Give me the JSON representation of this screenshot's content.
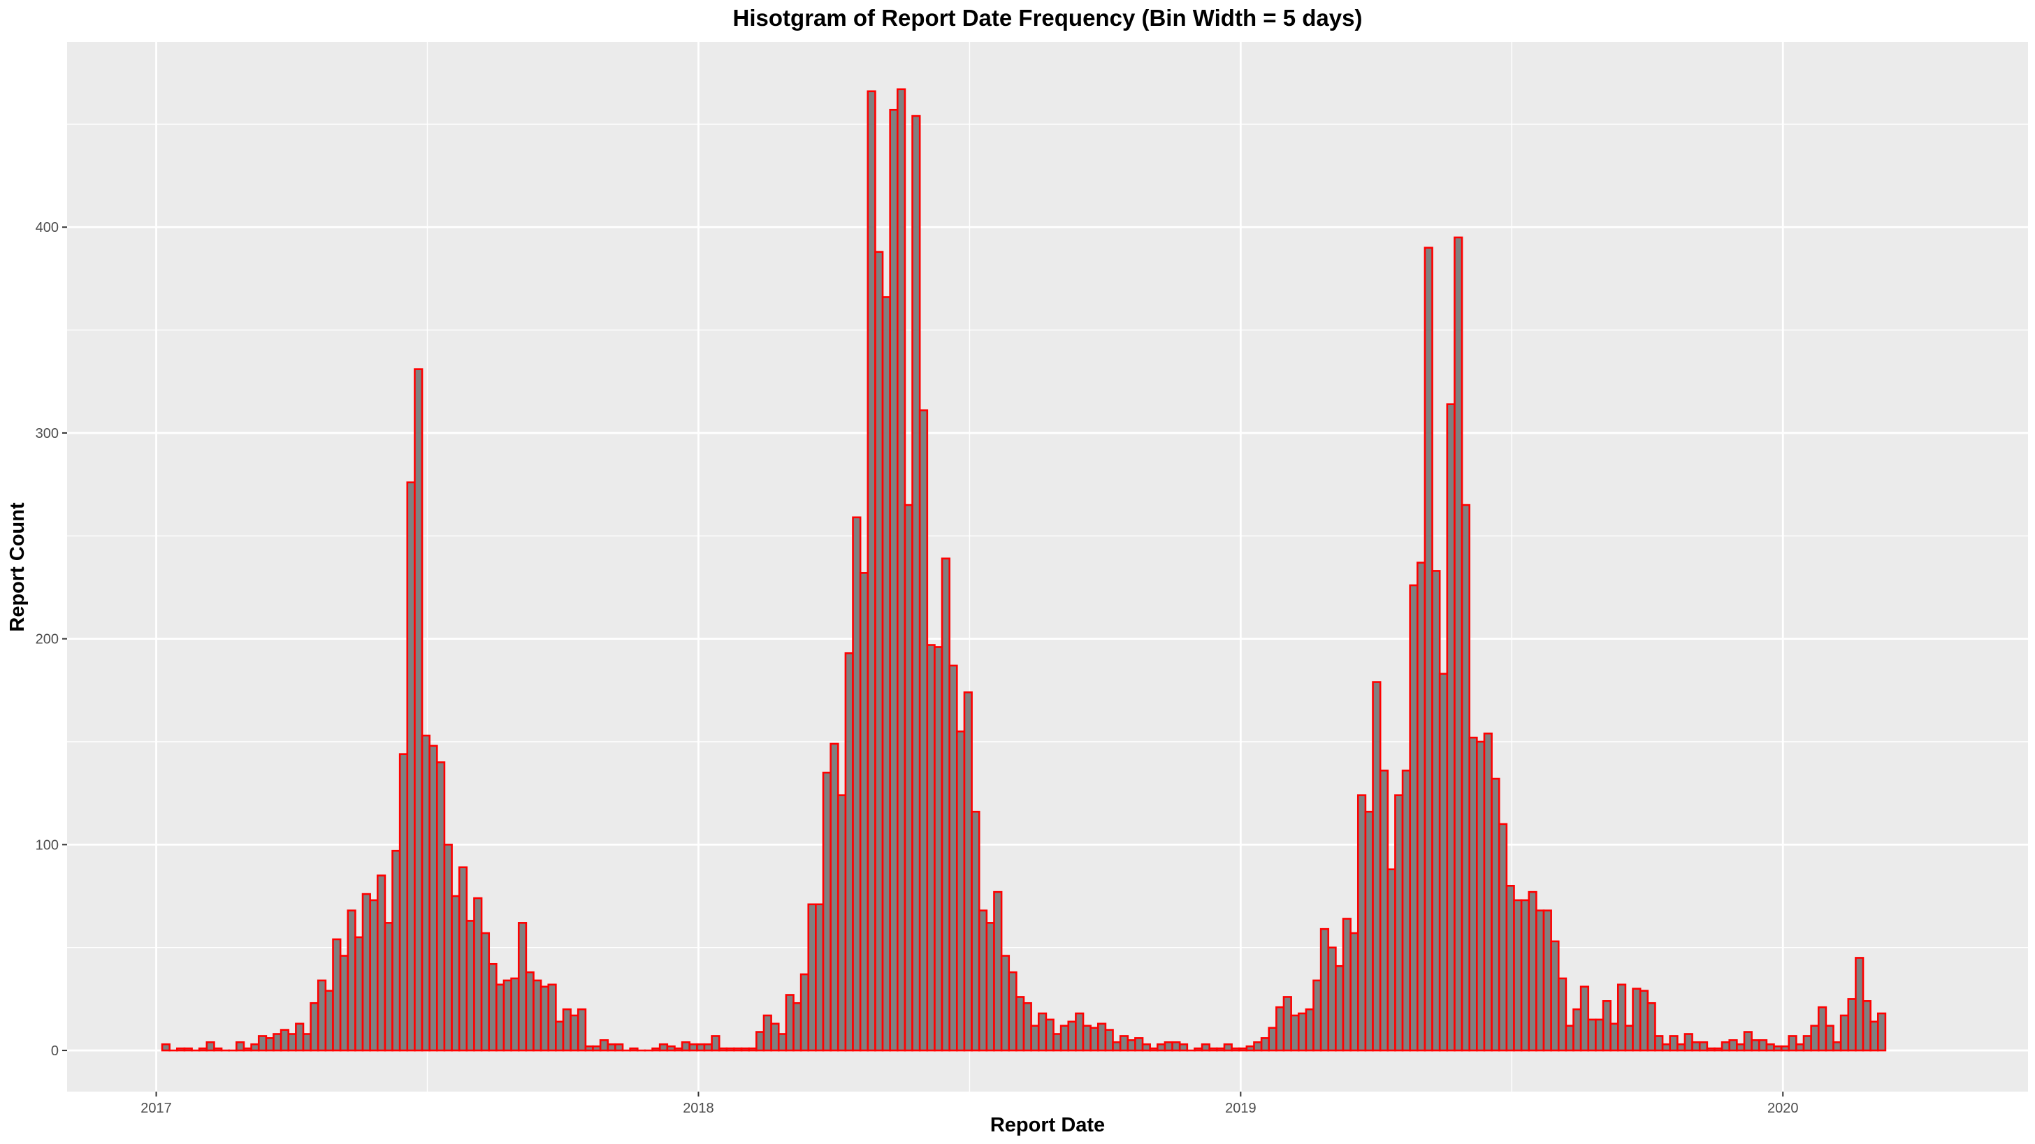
{
  "chart_data": {
    "type": "bar",
    "title": "Hisotgram of Report Date Frequency (Bin Width = 5 days)",
    "xlabel": "Report Date",
    "ylabel": "Report Count",
    "bin_width_days": 5,
    "first_bin_start": "2017-01-05",
    "x_ticks": [
      {
        "label": "2017",
        "date": "2017-01-01"
      },
      {
        "label": "2018",
        "date": "2018-01-01"
      },
      {
        "label": "2019",
        "date": "2019-01-01"
      },
      {
        "label": "2020",
        "date": "2020-01-01"
      }
    ],
    "xlim": [
      "2016-11-02",
      "2020-06-14"
    ],
    "y_ticks": [
      0,
      100,
      200,
      300,
      400
    ],
    "ylim": [
      -20,
      490
    ],
    "grid": true,
    "values": [
      3,
      0,
      1,
      1,
      0,
      1,
      4,
      1,
      0,
      0,
      4,
      1,
      3,
      7,
      6,
      8,
      10,
      8,
      13,
      8,
      23,
      34,
      29,
      54,
      46,
      68,
      55,
      76,
      73,
      85,
      62,
      97,
      144,
      276,
      331,
      153,
      148,
      140,
      100,
      75,
      89,
      63,
      74,
      57,
      42,
      32,
      34,
      35,
      62,
      38,
      34,
      31,
      32,
      14,
      20,
      17,
      20,
      2,
      2,
      5,
      3,
      3,
      0,
      1,
      0,
      0,
      1,
      3,
      2,
      1,
      4,
      3,
      3,
      3,
      7,
      1,
      1,
      1,
      1,
      1,
      9,
      17,
      13,
      8,
      27,
      23,
      37,
      71,
      71,
      135,
      149,
      124,
      193,
      259,
      232,
      466,
      388,
      366,
      457,
      467,
      265,
      454,
      311,
      197,
      196,
      239,
      187,
      155,
      174,
      116,
      68,
      62,
      77,
      46,
      38,
      26,
      23,
      12,
      18,
      15,
      8,
      12,
      14,
      18,
      12,
      11,
      13,
      10,
      4,
      7,
      5,
      6,
      3,
      1,
      3,
      4,
      4,
      3,
      0,
      1,
      3,
      1,
      1,
      3,
      1,
      1,
      2,
      4,
      6,
      11,
      21,
      26,
      17,
      18,
      20,
      34,
      59,
      50,
      41,
      64,
      57,
      124,
      116,
      179,
      136,
      88,
      124,
      136,
      226,
      237,
      390,
      233,
      183,
      314,
      395,
      265,
      152,
      150,
      154,
      132,
      110,
      80,
      73,
      73,
      77,
      68,
      68,
      53,
      35,
      12,
      20,
      31,
      15,
      15,
      24,
      13,
      32,
      12,
      30,
      29,
      23,
      7,
      3,
      7,
      3,
      8,
      4,
      4,
      1,
      1,
      4,
      5,
      3,
      9,
      5,
      5,
      3,
      2,
      2,
      7,
      3,
      7,
      12,
      21,
      12,
      4,
      17,
      25,
      45,
      24,
      14,
      18
    ],
    "colors": {
      "bar_fill": "#808080",
      "bar_outline": "#ff0000",
      "panel_background": "#ebebeb",
      "grid_line": "#ffffff"
    }
  }
}
